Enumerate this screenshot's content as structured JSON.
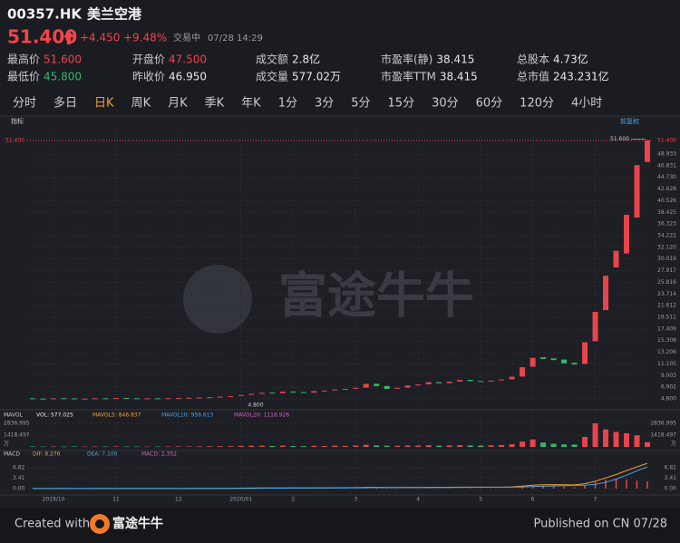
{
  "header": {
    "code": "00357.HK",
    "name": "美兰空港",
    "price": "51.400",
    "change": "+4.450",
    "change_pct": "+9.48%",
    "status": "交易中",
    "time": "07/28 14:29"
  },
  "stats": [
    {
      "label": "最高价",
      "value": "51.600",
      "color": "#f0444a"
    },
    {
      "label": "开盘价",
      "value": "47.500",
      "color": "#f0444a"
    },
    {
      "label": "成交额",
      "value": "2.8亿",
      "color": "#e8e8e8"
    },
    {
      "label": "市盈率(静)",
      "value": "38.415",
      "color": "#e8e8e8"
    },
    {
      "label": "总股本",
      "value": "4.73亿",
      "color": "#e8e8e8"
    },
    {
      "label": "最低价",
      "value": "45.800",
      "color": "#2dbb6c"
    },
    {
      "label": "昨收价",
      "value": "46.950",
      "color": "#e8e8e8"
    },
    {
      "label": "成交量",
      "value": "577.02万",
      "color": "#e8e8e8"
    },
    {
      "label": "市盈率TTM",
      "value": "38.415",
      "color": "#e8e8e8"
    },
    {
      "label": "总市值",
      "value": "243.231亿",
      "color": "#e8e8e8"
    }
  ],
  "tabs": [
    {
      "label": "分时",
      "active": false
    },
    {
      "label": "多日",
      "active": false
    },
    {
      "label": "日K",
      "active": true
    },
    {
      "label": "周K",
      "active": false
    },
    {
      "label": "月K",
      "active": false
    },
    {
      "label": "季K",
      "active": false
    },
    {
      "label": "年K",
      "active": false
    },
    {
      "label": "1分",
      "active": false
    },
    {
      "label": "3分",
      "active": false
    },
    {
      "label": "5分",
      "active": false
    },
    {
      "label": "15分",
      "active": false
    },
    {
      "label": "30分",
      "active": false
    },
    {
      "label": "60分",
      "active": false
    },
    {
      "label": "120分",
      "active": false
    },
    {
      "label": "4小时",
      "active": false
    }
  ],
  "watermark": "富途牛牛",
  "footer": {
    "created": "Created with",
    "brand": "富途牛牛",
    "published": "Published on CN 07/28"
  },
  "chart_data": {
    "type": "candlestick",
    "panel_label": "指标",
    "adjust_label": "前复权",
    "up_color": "#e8454b",
    "down_color": "#2dbb6c",
    "grid": true,
    "categories": [
      null,
      null,
      "2019/10",
      null,
      null,
      null,
      null,
      null,
      "11",
      null,
      null,
      null,
      null,
      null,
      "12",
      null,
      null,
      null,
      null,
      null,
      "2020/01",
      null,
      null,
      null,
      null,
      "2",
      null,
      null,
      null,
      null,
      null,
      "3",
      null,
      null,
      null,
      null,
      null,
      "4",
      null,
      null,
      null,
      null,
      null,
      "5",
      null,
      null,
      null,
      null,
      "6",
      null,
      null,
      null,
      null,
      null,
      "7",
      null,
      null,
      null,
      null,
      null
    ],
    "open": [
      4.9,
      4.86,
      4.84,
      4.92,
      4.89,
      4.81,
      4.86,
      4.91,
      4.88,
      4.96,
      4.91,
      4.86,
      4.91,
      4.89,
      4.93,
      4.96,
      5.01,
      5.06,
      5.12,
      5.22,
      5.32,
      5.52,
      5.72,
      5.92,
      5.82,
      6.12,
      6.02,
      5.92,
      6.22,
      6.32,
      6.52,
      6.62,
      6.82,
      7.52,
      7.12,
      6.62,
      6.82,
      7.22,
      7.42,
      7.82,
      7.62,
      7.92,
      8.22,
      8.02,
      7.92,
      8.12,
      8.32,
      8.82,
      10.6,
      12.3,
      12.1,
      11.9,
      11.3,
      11.1,
      15.2,
      20.8,
      28.5,
      31.0,
      37.5,
      47.5
    ],
    "close": [
      4.85,
      4.82,
      4.9,
      4.88,
      4.8,
      4.85,
      4.9,
      4.87,
      4.95,
      4.9,
      4.85,
      4.9,
      4.88,
      4.92,
      4.95,
      5.0,
      5.05,
      5.1,
      5.2,
      5.3,
      5.5,
      5.7,
      5.9,
      5.8,
      6.1,
      6.0,
      5.9,
      6.2,
      6.3,
      6.5,
      6.6,
      6.8,
      7.5,
      7.1,
      6.6,
      6.8,
      7.2,
      7.4,
      7.8,
      7.6,
      7.9,
      8.2,
      8.0,
      7.9,
      8.1,
      8.3,
      8.8,
      10.5,
      12.2,
      12.0,
      11.8,
      11.2,
      11.0,
      15.0,
      20.5,
      27.0,
      31.5,
      38.0,
      46.95,
      51.4
    ],
    "ylim": [
      3.33,
      52.2
    ],
    "yticks": [
      {
        "value": 4.8,
        "label": "4.800"
      },
      6.902,
      9.003,
      11.105,
      13.206,
      15.308,
      17.409,
      19.511,
      21.612,
      23.714,
      25.816,
      27.917,
      30.019,
      {
        "value": 32.12,
        "label": "32.120"
      },
      34.222,
      36.323,
      38.425,
      40.526,
      42.628,
      {
        "value": 44.73,
        "label": "44.730"
      },
      46.831,
      48.933
    ],
    "price_line": {
      "value": 51.4,
      "label": "51.400"
    },
    "high_marker": {
      "value": 51.6,
      "label": "51.600"
    },
    "low_marker": {
      "value": 4.8,
      "label": "4.800"
    },
    "volume": {
      "legend": [
        {
          "text": "VOL: 577.025",
          "color": "#e8e8e8"
        },
        {
          "text": "MAVOL5: 846.837",
          "color": "#f0a030"
        },
        {
          "text": "MAVOL10: 959.613",
          "color": "#4aa3e8"
        },
        {
          "text": "MAVOL20: 1116.926",
          "color": "#d860c8"
        }
      ],
      "label": "MAVOL",
      "unit": "万",
      "values": [
        60,
        45,
        50,
        40,
        55,
        48,
        42,
        50,
        60,
        45,
        40,
        38,
        45,
        50,
        55,
        60,
        70,
        80,
        90,
        85,
        120,
        140,
        150,
        110,
        160,
        100,
        90,
        130,
        110,
        150,
        120,
        160,
        250,
        180,
        140,
        130,
        170,
        160,
        200,
        150,
        180,
        210,
        170,
        160,
        190,
        230,
        320,
        650,
        900,
        520,
        380,
        300,
        280,
        1200,
        2836.995,
        2100,
        1800,
        1650,
        1400,
        577.025
      ],
      "ylim": [
        0,
        3819
      ],
      "yticks": [
        1418.497,
        2836.995
      ]
    },
    "macd": {
      "label": "MACD",
      "legend": [
        {
          "text": "DIF: 8.276",
          "color": "#f0a030"
        },
        {
          "text": "DEA: 7.100",
          "color": "#4aa3e8"
        },
        {
          "text": "MACD: 2.352",
          "color": "#d860c8"
        }
      ],
      "dif_color": "#f0a030",
      "dea_color": "#4aa3e8",
      "dif": [
        0.02,
        0.01,
        0.02,
        0.02,
        0.01,
        0.01,
        0.02,
        0.02,
        0.03,
        0.03,
        0.02,
        0.02,
        0.02,
        0.03,
        0.03,
        0.04,
        0.05,
        0.06,
        0.08,
        0.1,
        0.14,
        0.18,
        0.22,
        0.22,
        0.25,
        0.24,
        0.22,
        0.24,
        0.25,
        0.28,
        0.3,
        0.33,
        0.42,
        0.42,
        0.36,
        0.34,
        0.36,
        0.38,
        0.42,
        0.42,
        0.44,
        0.48,
        0.48,
        0.46,
        0.46,
        0.48,
        0.56,
        0.8,
        1.1,
        1.25,
        1.3,
        1.28,
        1.22,
        1.6,
        2.4,
        3.5,
        4.6,
        5.9,
        7.1,
        8.276
      ],
      "dea": [
        0.02,
        0.02,
        0.02,
        0.02,
        0.02,
        0.02,
        0.02,
        0.02,
        0.02,
        0.02,
        0.02,
        0.02,
        0.02,
        0.02,
        0.03,
        0.03,
        0.03,
        0.04,
        0.05,
        0.06,
        0.08,
        0.1,
        0.12,
        0.14,
        0.16,
        0.18,
        0.19,
        0.2,
        0.21,
        0.22,
        0.24,
        0.26,
        0.29,
        0.32,
        0.33,
        0.33,
        0.34,
        0.35,
        0.36,
        0.38,
        0.39,
        0.41,
        0.42,
        0.43,
        0.44,
        0.45,
        0.47,
        0.53,
        0.64,
        0.76,
        0.87,
        0.95,
        1.0,
        1.12,
        1.38,
        2.0,
        3.1,
        4.4,
        5.8,
        7.1
      ],
      "hist": [
        0,
        -0.02,
        0,
        0,
        -0.02,
        -0.02,
        0,
        0,
        0.02,
        0.02,
        0,
        0,
        0,
        0.02,
        0,
        0.02,
        0.04,
        0.04,
        0.06,
        0.08,
        0.12,
        0.16,
        0.2,
        0.16,
        0.18,
        0.12,
        0.06,
        0.08,
        0.08,
        0.12,
        0.12,
        0.14,
        0.26,
        0.2,
        0.06,
        0.02,
        0.04,
        0.06,
        0.12,
        0.08,
        0.1,
        0.14,
        0.12,
        0.06,
        0.04,
        0.06,
        0.18,
        0.54,
        0.92,
        0.98,
        0.86,
        0.66,
        0.44,
        0.96,
        2.04,
        3.0,
        3.0,
        3.0,
        2.6,
        2.352
      ],
      "ylim": [
        -1.78,
        10.67
      ],
      "yticks": [
        {
          "value": 0,
          "label": "0.00"
        },
        3.41,
        6.82
      ]
    }
  }
}
